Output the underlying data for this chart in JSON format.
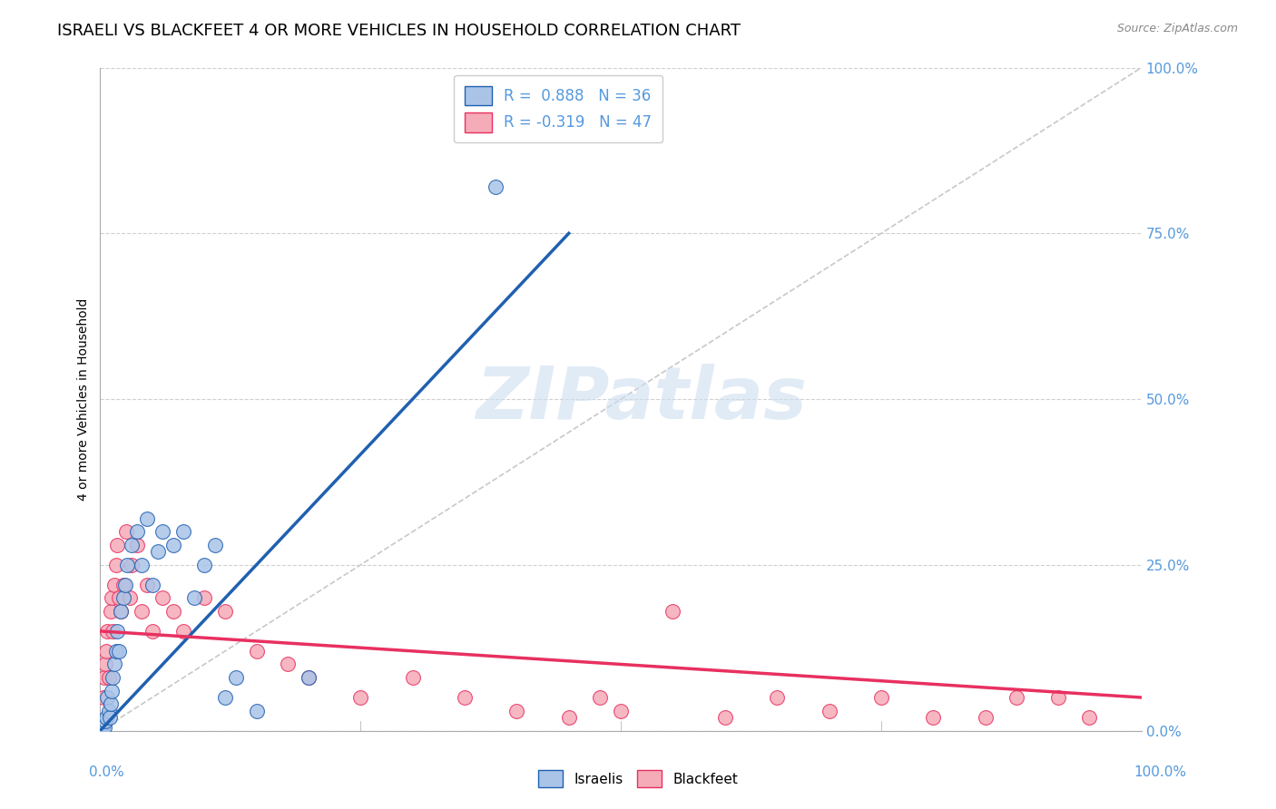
{
  "title": "ISRAELI VS BLACKFEET 4 OR MORE VEHICLES IN HOUSEHOLD CORRELATION CHART",
  "source": "Source: ZipAtlas.com",
  "ylabel": "4 or more Vehicles in Household",
  "ytick_values": [
    0,
    25,
    50,
    75,
    100
  ],
  "xlim": [
    0,
    100
  ],
  "ylim": [
    0,
    100
  ],
  "israeli_R": 0.888,
  "israeli_N": 36,
  "blackfeet_R": -0.319,
  "blackfeet_N": 47,
  "israeli_color": "#aac4e8",
  "blackfeet_color": "#f5abb8",
  "israeli_line_color": "#2060b0",
  "blackfeet_line_color": "#e83060",
  "diagonal_color": "#c8c8c8",
  "israeli_scatter_x": [
    0.2,
    0.3,
    0.4,
    0.5,
    0.6,
    0.7,
    0.8,
    0.9,
    1.0,
    1.1,
    1.2,
    1.4,
    1.5,
    1.6,
    1.8,
    2.0,
    2.2,
    2.4,
    2.6,
    3.0,
    3.5,
    4.0,
    4.5,
    5.0,
    5.5,
    6.0,
    7.0,
    8.0,
    9.0,
    10.0,
    11.0,
    12.0,
    13.0,
    15.0,
    20.0,
    38.0
  ],
  "israeli_scatter_y": [
    0.5,
    1.0,
    0.5,
    1.5,
    2.0,
    5.0,
    3.0,
    2.0,
    4.0,
    6.0,
    8.0,
    10.0,
    12.0,
    15.0,
    12.0,
    18.0,
    20.0,
    22.0,
    25.0,
    28.0,
    30.0,
    25.0,
    32.0,
    22.0,
    27.0,
    30.0,
    28.0,
    30.0,
    20.0,
    25.0,
    28.0,
    5.0,
    8.0,
    3.0,
    8.0,
    82.0
  ],
  "blackfeet_scatter_x": [
    0.3,
    0.4,
    0.5,
    0.6,
    0.7,
    0.8,
    1.0,
    1.1,
    1.2,
    1.4,
    1.5,
    1.6,
    1.8,
    2.0,
    2.2,
    2.5,
    2.8,
    3.0,
    3.5,
    4.0,
    4.5,
    5.0,
    6.0,
    7.0,
    8.0,
    10.0,
    12.0,
    15.0,
    18.0,
    20.0,
    25.0,
    30.0,
    35.0,
    40.0,
    45.0,
    48.0,
    50.0,
    55.0,
    60.0,
    65.0,
    70.0,
    75.0,
    80.0,
    85.0,
    88.0,
    92.0,
    95.0
  ],
  "blackfeet_scatter_y": [
    5.0,
    8.0,
    10.0,
    12.0,
    15.0,
    8.0,
    18.0,
    20.0,
    15.0,
    22.0,
    25.0,
    28.0,
    20.0,
    18.0,
    22.0,
    30.0,
    20.0,
    25.0,
    28.0,
    18.0,
    22.0,
    15.0,
    20.0,
    18.0,
    15.0,
    20.0,
    18.0,
    12.0,
    10.0,
    8.0,
    5.0,
    8.0,
    5.0,
    3.0,
    2.0,
    5.0,
    3.0,
    18.0,
    2.0,
    5.0,
    3.0,
    5.0,
    2.0,
    2.0,
    5.0,
    5.0,
    2.0
  ],
  "background_color": "#ffffff",
  "grid_color": "#d0d0d0",
  "title_fontsize": 13,
  "label_fontsize": 10,
  "tick_fontsize": 11,
  "legend_label_israeli": "Israelis",
  "legend_label_blackfeet": "Blackfeet",
  "israeli_line_x": [
    0,
    45
  ],
  "israeli_line_y": [
    0,
    75
  ],
  "blackfeet_line_x": [
    0,
    100
  ],
  "blackfeet_line_y": [
    15,
    5
  ]
}
